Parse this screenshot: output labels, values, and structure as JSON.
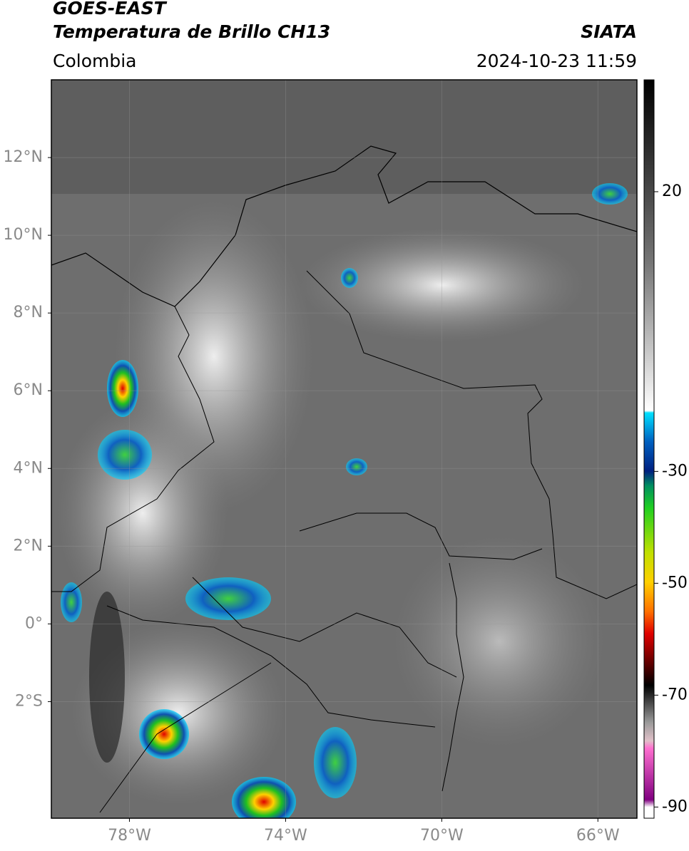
{
  "header": {
    "source": "GOES-EAST",
    "product": "Temperatura de Brillo CH13",
    "agency": "SIATA",
    "region": "Colombia",
    "datetime": "2024-10-23 11:59"
  },
  "map": {
    "lonlim": [
      -80,
      -65
    ],
    "latlim": [
      -5,
      14
    ],
    "lat_ticks": [
      {
        "value": 12,
        "label": "12°N"
      },
      {
        "value": 10,
        "label": "10°N"
      },
      {
        "value": 8,
        "label": "8°N"
      },
      {
        "value": 6,
        "label": "6°N"
      },
      {
        "value": 4,
        "label": "4°N"
      },
      {
        "value": 2,
        "label": "2°N"
      },
      {
        "value": 0,
        "label": "0°"
      },
      {
        "value": -2,
        "label": "2°S"
      }
    ],
    "lon_ticks": [
      {
        "value": -78,
        "label": "78°W"
      },
      {
        "value": -74,
        "label": "74°W"
      },
      {
        "value": -70,
        "label": "70°W"
      },
      {
        "value": -66,
        "label": "66°W"
      }
    ]
  },
  "colorbar": {
    "range": [
      -92,
      40
    ],
    "ticks": [
      20,
      -30,
      -50,
      -70,
      -90
    ]
  }
}
